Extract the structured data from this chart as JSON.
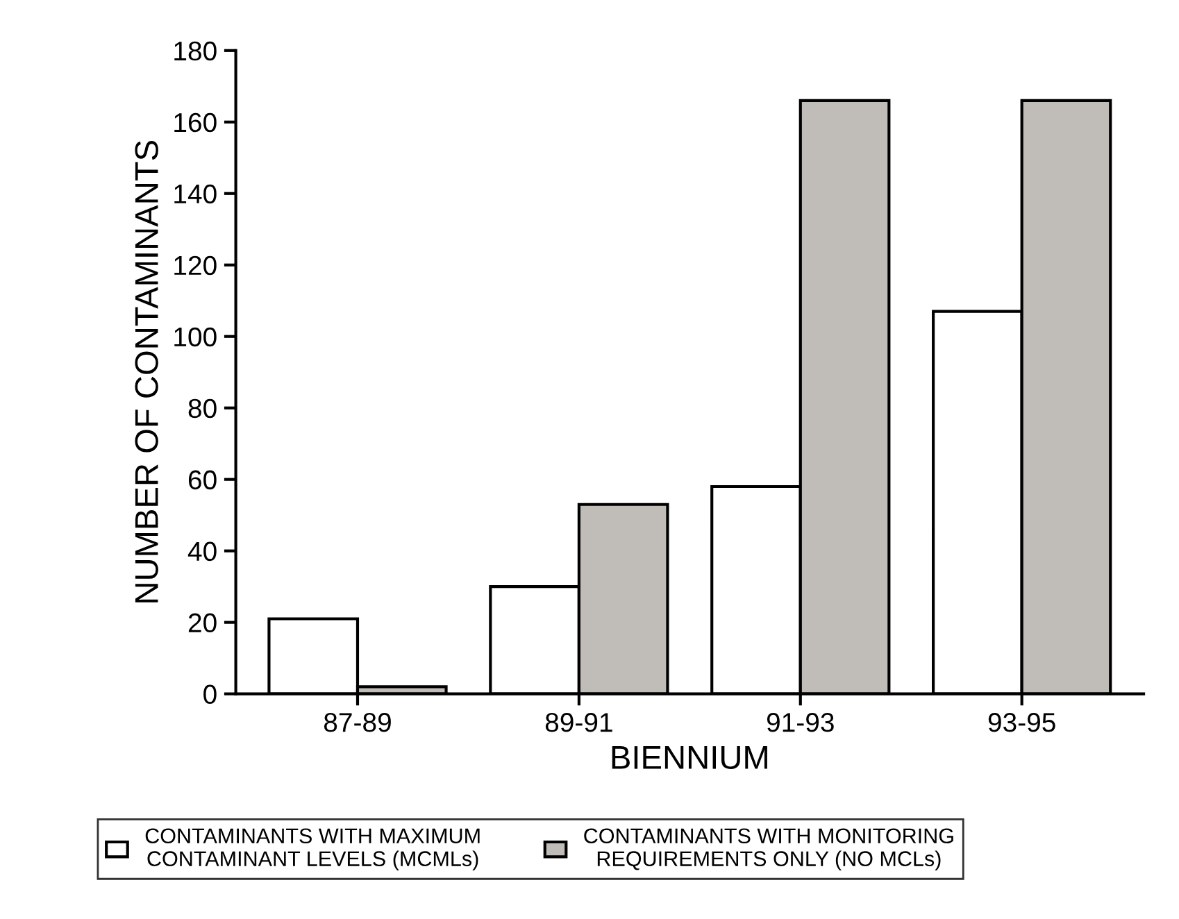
{
  "chart_data": {
    "type": "bar",
    "xlabel": "BIENNIUM",
    "ylabel": "NUMBER OF CONTAMINANTS",
    "categories": [
      "87-89",
      "89-91",
      "91-93",
      "93-95"
    ],
    "series": [
      {
        "name": "CONTAMINANTS WITH MAXIMUM\nCONTAMINANT LEVELS (MCMLs)",
        "color": "#ffffff",
        "values": [
          21,
          30,
          58,
          107
        ]
      },
      {
        "name": "CONTAMINANTS WITH MONITORING\nREQUIREMENTS ONLY (NO MCLs)",
        "color": "#c0bcb8",
        "values": [
          2,
          53,
          166,
          166
        ]
      }
    ],
    "ylim": [
      0,
      180
    ],
    "yticks": [
      0,
      20,
      40,
      60,
      80,
      100,
      120,
      140,
      160,
      180
    ],
    "grid": false,
    "legend": "bottom"
  }
}
